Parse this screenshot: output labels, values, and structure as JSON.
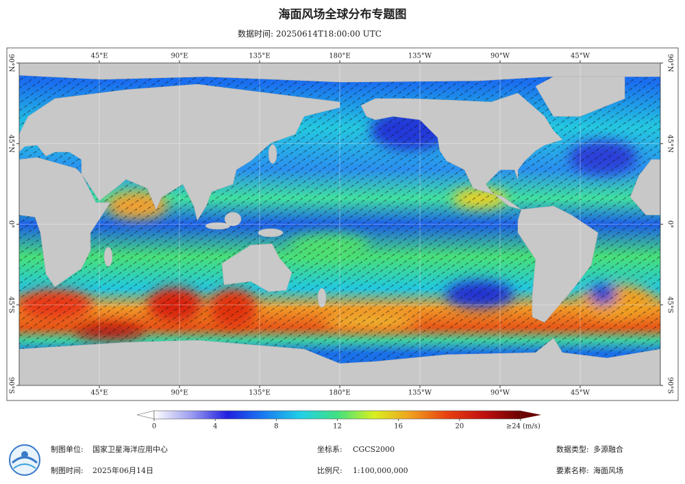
{
  "header": {
    "title": "海面风场全球分布专题图",
    "subtitle": "数据时间: 20250614T18:00:00 UTC"
  },
  "map": {
    "lon_ticks": [
      {
        "value": 45,
        "label": "45°E"
      },
      {
        "value": 90,
        "label": "90°E"
      },
      {
        "value": 135,
        "label": "135°E"
      },
      {
        "value": 180,
        "label": "180°E"
      },
      {
        "value": 225,
        "label": "135°W"
      },
      {
        "value": 270,
        "label": "90°W"
      },
      {
        "value": 315,
        "label": "45°W"
      }
    ],
    "lat_ticks": [
      {
        "value": 90,
        "label": "90°N"
      },
      {
        "value": 45,
        "label": "45°N"
      },
      {
        "value": 0,
        "label": "0°"
      },
      {
        "value": -45,
        "label": "45°S"
      },
      {
        "value": -90,
        "label": "90°S"
      }
    ]
  },
  "colorbar": {
    "ticks": [
      0,
      4,
      8,
      12,
      16,
      20
    ],
    "max": {
      "value": 24,
      "label": "≥24"
    },
    "unit": "(m/s)",
    "colors": [
      "#ffffff",
      "#9e9ef0",
      "#2020e0",
      "#1a7cf0",
      "#20d0e8",
      "#40e080",
      "#d8f020",
      "#f0a020",
      "#e84010",
      "#c01010",
      "#6a0000"
    ]
  },
  "footer": {
    "unit_label": "制图单位:",
    "unit": "国家卫星海洋应用中心",
    "date_label": "制图时间:",
    "date": "2025年06月14日",
    "crs_label": "坐标系:",
    "crs": "CGCS2000",
    "scale_label": "比例尺:",
    "scale": "1:100,000,000",
    "type_label": "数据类型:",
    "type": "多源融合",
    "element_label": "要素名称:",
    "element": "海面风场"
  }
}
